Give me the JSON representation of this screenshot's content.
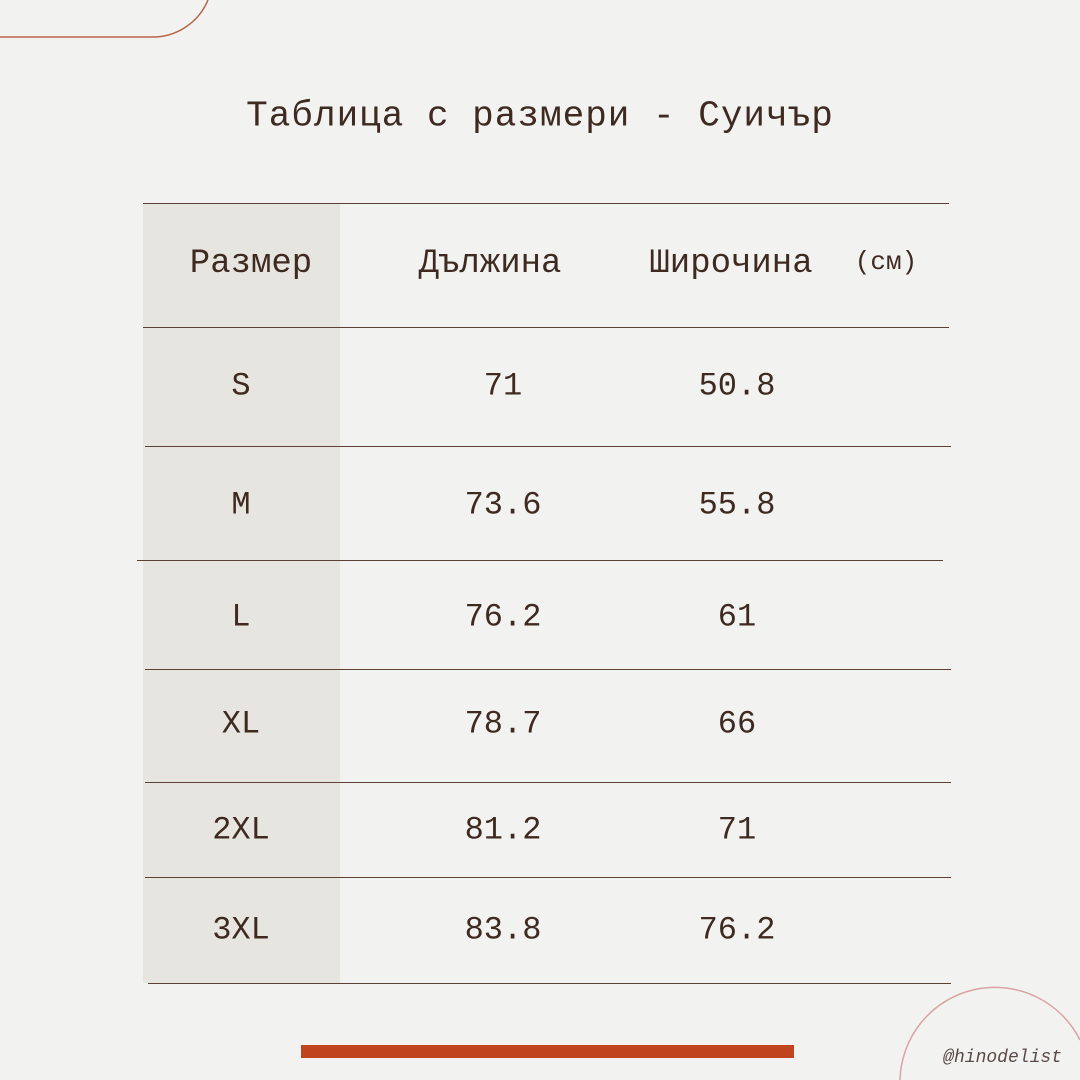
{
  "title": "Таблица с размери - Суичър",
  "table": {
    "headers": [
      "Размер",
      "Дължина",
      "Широчина"
    ],
    "unit": "(см)",
    "rows": [
      [
        "S",
        "71",
        "50.8"
      ],
      [
        "M",
        "73.6",
        "55.8"
      ],
      [
        "L",
        "76.2",
        "61"
      ],
      [
        "XL",
        "78.7",
        "66"
      ],
      [
        "2XL",
        "81.2",
        "71"
      ],
      [
        "3XL",
        "83.8",
        "76.2"
      ]
    ]
  },
  "footer": {
    "handle": "@hinodelist"
  }
}
